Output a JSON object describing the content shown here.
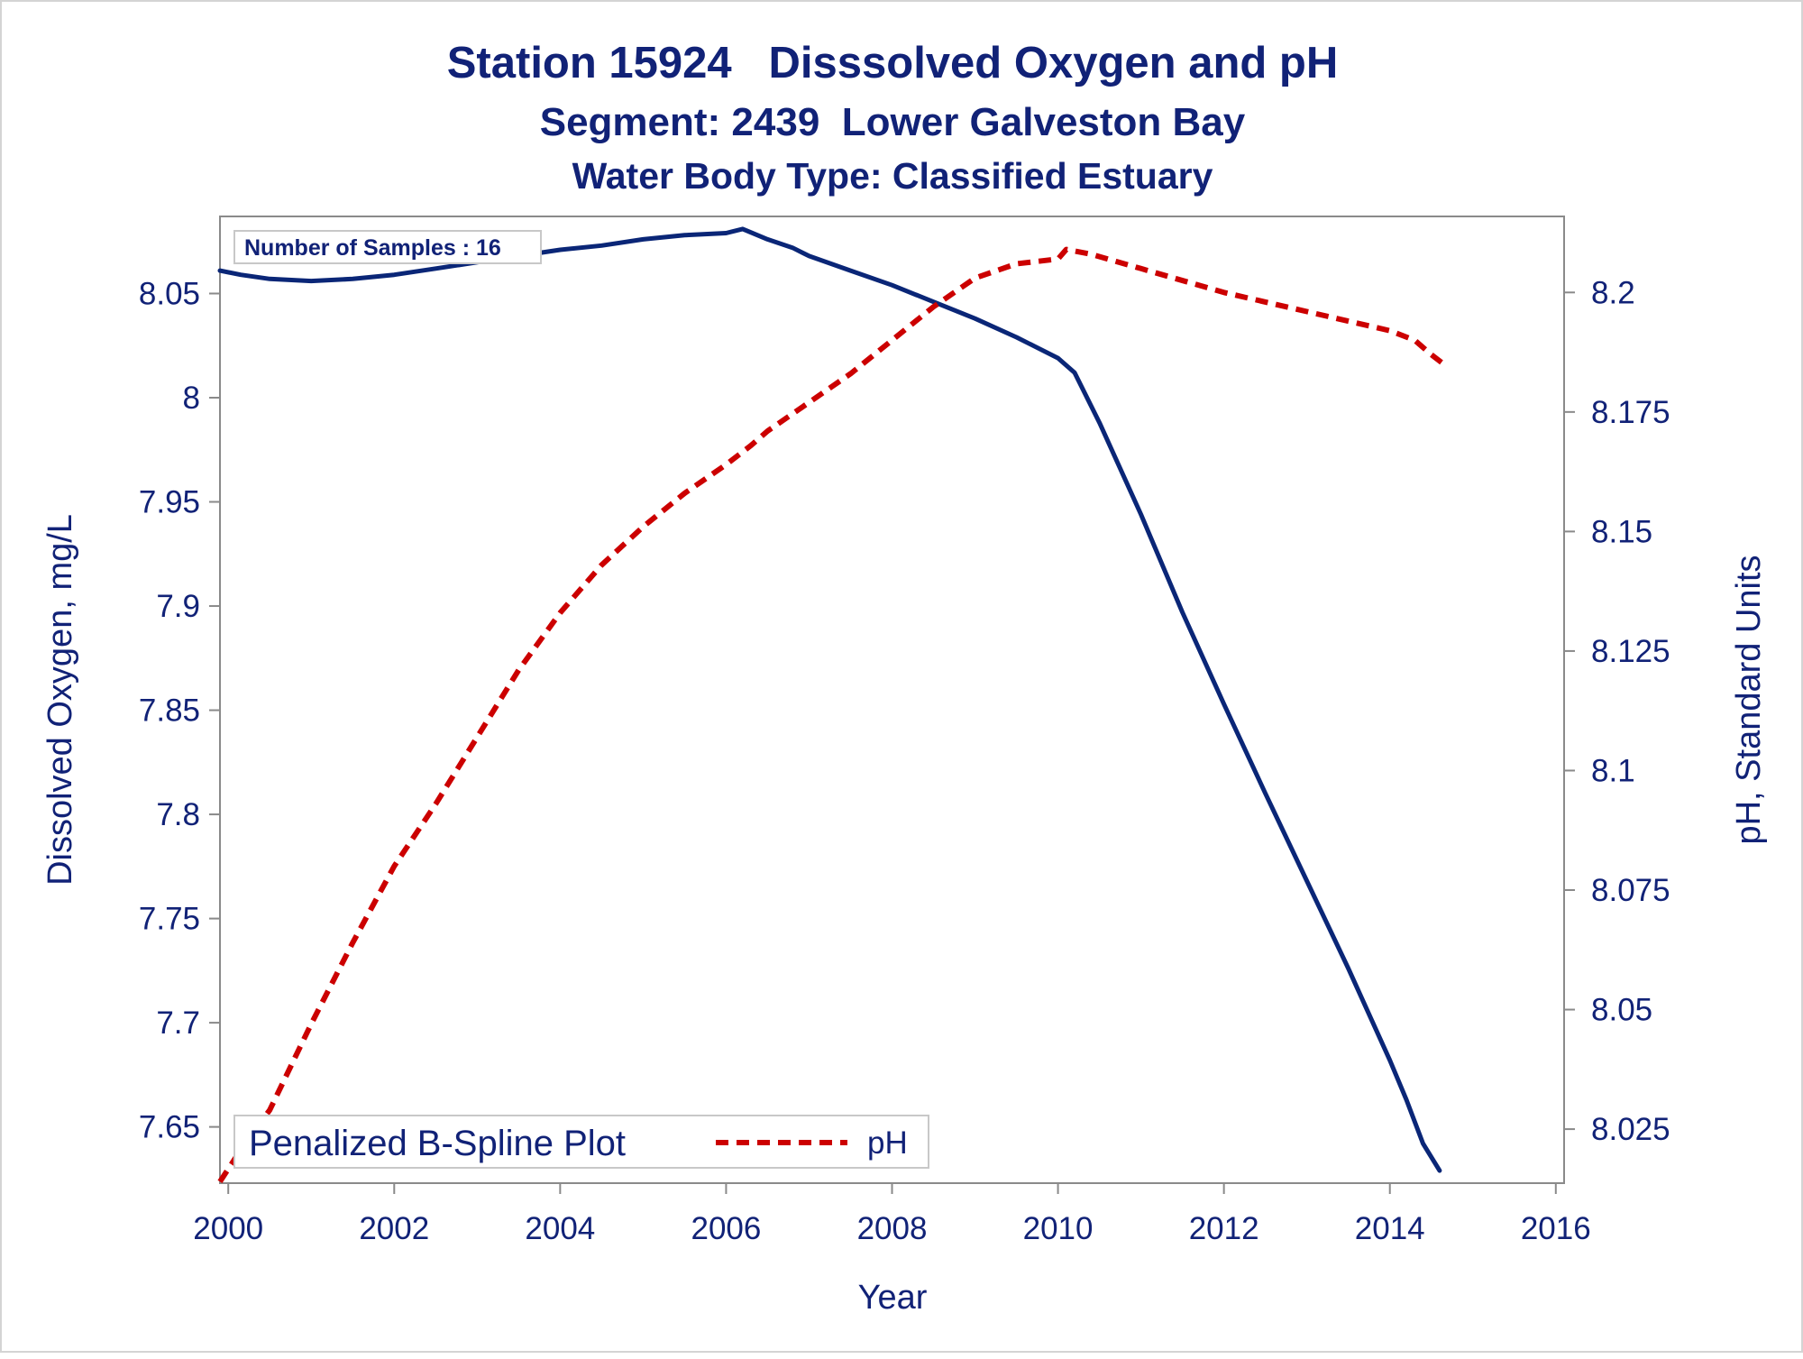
{
  "chart_data": {
    "type": "line",
    "title": "Station 15924   Disssolved Oxygen and pH",
    "subtitle": "Segment: 2439  Lower Galveston Bay",
    "subtitle2": "Water Body Type: Classified Estuary",
    "xlabel": "Year",
    "ylabel_left": "Dissolved Oxygen, mg/L",
    "ylabel_right": "pH, Standard Units",
    "xlim": [
      1999.9,
      2016.1
    ],
    "ylim_left": [
      7.623,
      8.087
    ],
    "ylim_right": [
      8.0137,
      8.2159
    ],
    "x_ticks": [
      2000,
      2002,
      2004,
      2006,
      2008,
      2010,
      2012,
      2014,
      2016
    ],
    "y_ticks_left": [
      7.65,
      7.7,
      7.75,
      7.8,
      7.85,
      7.9,
      7.95,
      8,
      8.05
    ],
    "y_ticks_right": [
      8.025,
      8.05,
      8.075,
      8.1,
      8.125,
      8.15,
      8.175,
      8.2
    ],
    "y_tick_labels_left": [
      "7.65",
      "7.7",
      "7.75",
      "7.8",
      "7.85",
      "7.9",
      "7.95",
      "8",
      "8.05"
    ],
    "y_tick_labels_right": [
      "8.025",
      "8.05",
      "8.075",
      "8.1",
      "8.125",
      "8.15",
      "8.175",
      "8.2"
    ],
    "annotation": "Number of Samples : 16",
    "legend": {
      "title": "Penalized B-Spline Plot",
      "placement": "bottom-left"
    },
    "grid": false,
    "series": [
      {
        "name": "Dissolved Oxygen",
        "axis": "left",
        "color": "#0a2677",
        "style": "solid",
        "x": [
          1999.9,
          2000.15,
          2000.5,
          2001.0,
          2001.5,
          2002.0,
          2002.5,
          2003.0,
          2003.5,
          2004.0,
          2004.5,
          2005.0,
          2005.5,
          2006.0,
          2006.2,
          2006.5,
          2006.8,
          2007.0,
          2007.5,
          2008.0,
          2008.5,
          2009.0,
          2009.5,
          2010.0,
          2010.2,
          2010.5,
          2011.0,
          2011.5,
          2012.0,
          2012.5,
          2013.0,
          2013.5,
          2014.0,
          2014.2,
          2014.4,
          2014.6
        ],
        "y": [
          8.061,
          8.059,
          8.057,
          8.056,
          8.057,
          8.059,
          8.062,
          8.065,
          8.068,
          8.071,
          8.073,
          8.076,
          8.078,
          8.079,
          8.081,
          8.076,
          8.072,
          8.068,
          8.061,
          8.054,
          8.046,
          8.038,
          8.029,
          8.019,
          8.012,
          7.988,
          7.944,
          7.897,
          7.853,
          7.81,
          7.768,
          7.726,
          7.682,
          7.663,
          7.642,
          7.629
        ]
      },
      {
        "name": "pH",
        "axis": "right",
        "color": "#cc0000",
        "style": "dashed",
        "x": [
          1999.9,
          2000.2,
          2000.5,
          2001.0,
          2001.5,
          2002.0,
          2002.5,
          2003.0,
          2003.5,
          2004.0,
          2004.5,
          2005.0,
          2005.5,
          2006.0,
          2006.3,
          2006.5,
          2007.0,
          2007.5,
          2008.0,
          2008.5,
          2009.0,
          2009.5,
          2010.0,
          2010.1,
          2010.4,
          2011.0,
          2012.0,
          2013.0,
          2014.0,
          2014.3,
          2014.5,
          2014.65
        ],
        "y": [
          8.014,
          8.022,
          8.029,
          8.047,
          8.064,
          8.08,
          8.093,
          8.107,
          8.121,
          8.133,
          8.143,
          8.151,
          8.158,
          8.164,
          8.168,
          8.171,
          8.177,
          8.183,
          8.19,
          8.197,
          8.203,
          8.206,
          8.207,
          8.209,
          8.208,
          8.205,
          8.2,
          8.196,
          8.192,
          8.19,
          8.187,
          8.185
        ]
      }
    ]
  }
}
